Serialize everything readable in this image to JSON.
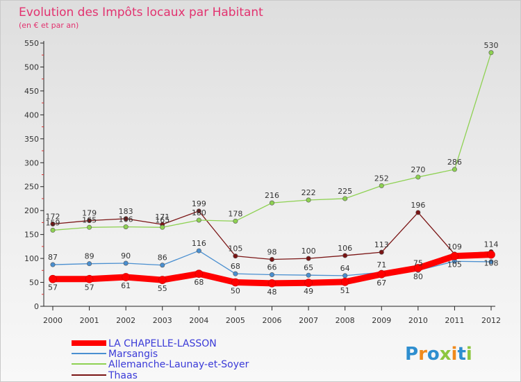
{
  "chart_data": {
    "type": "line",
    "title": "Evolution des Impôts locaux par Habitant",
    "subtitle": "(en € et par an)",
    "xlabel": "",
    "ylabel": "",
    "x": [
      "2000",
      "2001",
      "2002",
      "2003",
      "2004",
      "2005",
      "2006",
      "2007",
      "2008",
      "2009",
      "2010",
      "2011",
      "2012"
    ],
    "ylim": [
      0,
      550
    ],
    "yticks": [
      "0",
      "50",
      "100",
      "150",
      "200",
      "250",
      "300",
      "350",
      "400",
      "450",
      "500",
      "550"
    ],
    "grid": false,
    "legend_position": "bottom-left",
    "series": [
      {
        "name": "LA CHAPELLE-LASSON",
        "color": "#ff0000",
        "values": [
          57,
          57,
          61,
          55,
          68,
          50,
          48,
          49,
          51,
          67,
          80,
          105,
          108
        ],
        "labels": [
          "57",
          "57",
          "61",
          "55",
          "68",
          "50",
          "48",
          "49",
          "51",
          "67",
          "80",
          "105",
          "108"
        ]
      },
      {
        "name": "Marsangis",
        "color": "#4a8fd0",
        "values": [
          87,
          89,
          90,
          86,
          116,
          68,
          66,
          65,
          64,
          71,
          75,
          94,
          93
        ],
        "labels": [
          "87",
          "89",
          "90",
          "86",
          "116",
          "68",
          "66",
          "65",
          "64",
          "71",
          "75",
          "",
          ""
        ]
      },
      {
        "name": "Allemanche-Launay-et-Soyer",
        "color": "#8ed152",
        "values": [
          159,
          165,
          166,
          165,
          180,
          178,
          216,
          222,
          225,
          252,
          270,
          286,
          530
        ],
        "labels": [
          "159",
          "165",
          "166",
          "165",
          "180",
          "178",
          "216",
          "222",
          "225",
          "252",
          "270",
          "286",
          "530"
        ]
      },
      {
        "name": "Thaas",
        "color": "#7a1414",
        "values": [
          172,
          179,
          183,
          171,
          199,
          105,
          98,
          100,
          106,
          113,
          196,
          109,
          114
        ],
        "labels": [
          "172",
          "179",
          "183",
          "171",
          "199",
          "105",
          "98",
          "100",
          "106",
          "113",
          "196",
          "109",
          "114"
        ]
      }
    ]
  },
  "logo": {
    "text": "Proxiti"
  }
}
